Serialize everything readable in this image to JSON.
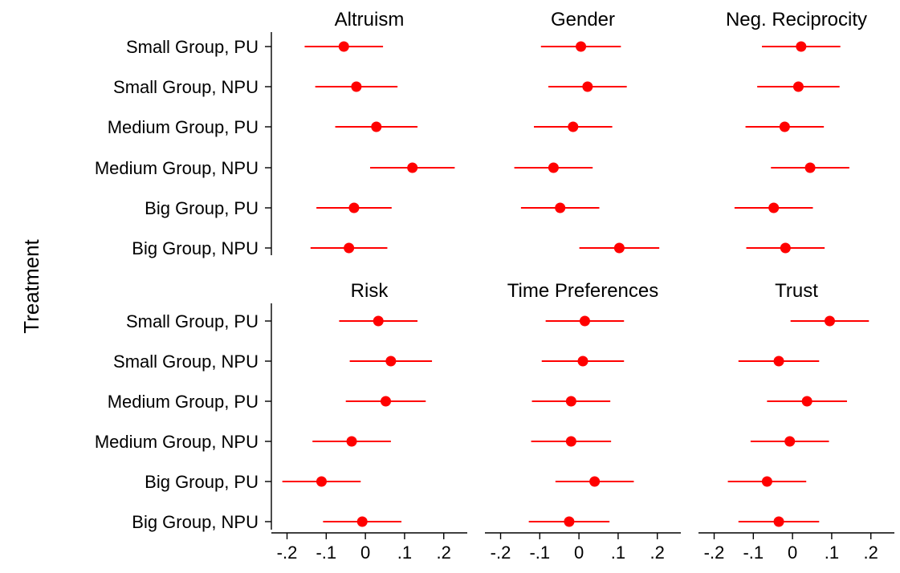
{
  "chart_data": {
    "type": "scatter",
    "subtype": "coefficient-plot",
    "ylabel": "Treatment",
    "categories": [
      "Small Group, PU",
      "Small Group, NPU",
      "Medium Group, PU",
      "Medium Group, NPU",
      "Big Group, PU",
      "Big Group, NPU"
    ],
    "x_ticks": [
      "-.2",
      "-.1",
      "0",
      ".1",
      ".2"
    ],
    "x_tick_values": [
      -0.2,
      -0.1,
      0,
      0.1,
      0.2
    ],
    "xlim": [
      -0.24,
      0.26
    ],
    "marker_color": "#ff0000",
    "grid": false,
    "panels": [
      {
        "title": "Altruism",
        "estimates": [
          -0.055,
          -0.023,
          0.028,
          0.12,
          -0.029,
          -0.042
        ],
        "ci_low": [
          -0.155,
          -0.128,
          -0.077,
          0.012,
          -0.125,
          -0.14
        ],
        "ci_high": [
          0.045,
          0.082,
          0.133,
          0.228,
          0.067,
          0.056
        ]
      },
      {
        "title": "Gender",
        "estimates": [
          0.005,
          0.022,
          -0.015,
          -0.065,
          -0.048,
          0.103
        ],
        "ci_low": [
          -0.097,
          -0.078,
          -0.115,
          -0.165,
          -0.148,
          0.001
        ],
        "ci_high": [
          0.107,
          0.122,
          0.085,
          0.035,
          0.052,
          0.205
        ]
      },
      {
        "title": "Neg. Reciprocity",
        "estimates": [
          0.022,
          0.015,
          -0.02,
          0.045,
          -0.048,
          -0.018
        ],
        "ci_low": [
          -0.078,
          -0.09,
          -0.12,
          -0.055,
          -0.148,
          -0.118
        ],
        "ci_high": [
          0.122,
          0.12,
          0.08,
          0.145,
          0.052,
          0.082
        ]
      },
      {
        "title": "Risk",
        "estimates": [
          0.033,
          0.065,
          0.052,
          -0.035,
          -0.112,
          -0.008
        ],
        "ci_low": [
          -0.067,
          -0.04,
          -0.05,
          -0.135,
          -0.212,
          -0.108
        ],
        "ci_high": [
          0.133,
          0.17,
          0.154,
          0.065,
          -0.012,
          0.092
        ]
      },
      {
        "title": "Time Preferences",
        "estimates": [
          0.015,
          0.01,
          -0.02,
          -0.02,
          0.04,
          -0.025
        ],
        "ci_low": [
          -0.085,
          -0.095,
          -0.12,
          -0.122,
          -0.06,
          -0.128
        ],
        "ci_high": [
          0.115,
          0.115,
          0.08,
          0.082,
          0.14,
          0.078
        ]
      },
      {
        "title": "Trust",
        "estimates": [
          0.095,
          -0.035,
          0.037,
          -0.007,
          -0.065,
          -0.035
        ],
        "ci_low": [
          -0.005,
          -0.138,
          -0.065,
          -0.107,
          -0.165,
          -0.138
        ],
        "ci_high": [
          0.195,
          0.068,
          0.139,
          0.093,
          0.035,
          0.068
        ]
      }
    ]
  }
}
